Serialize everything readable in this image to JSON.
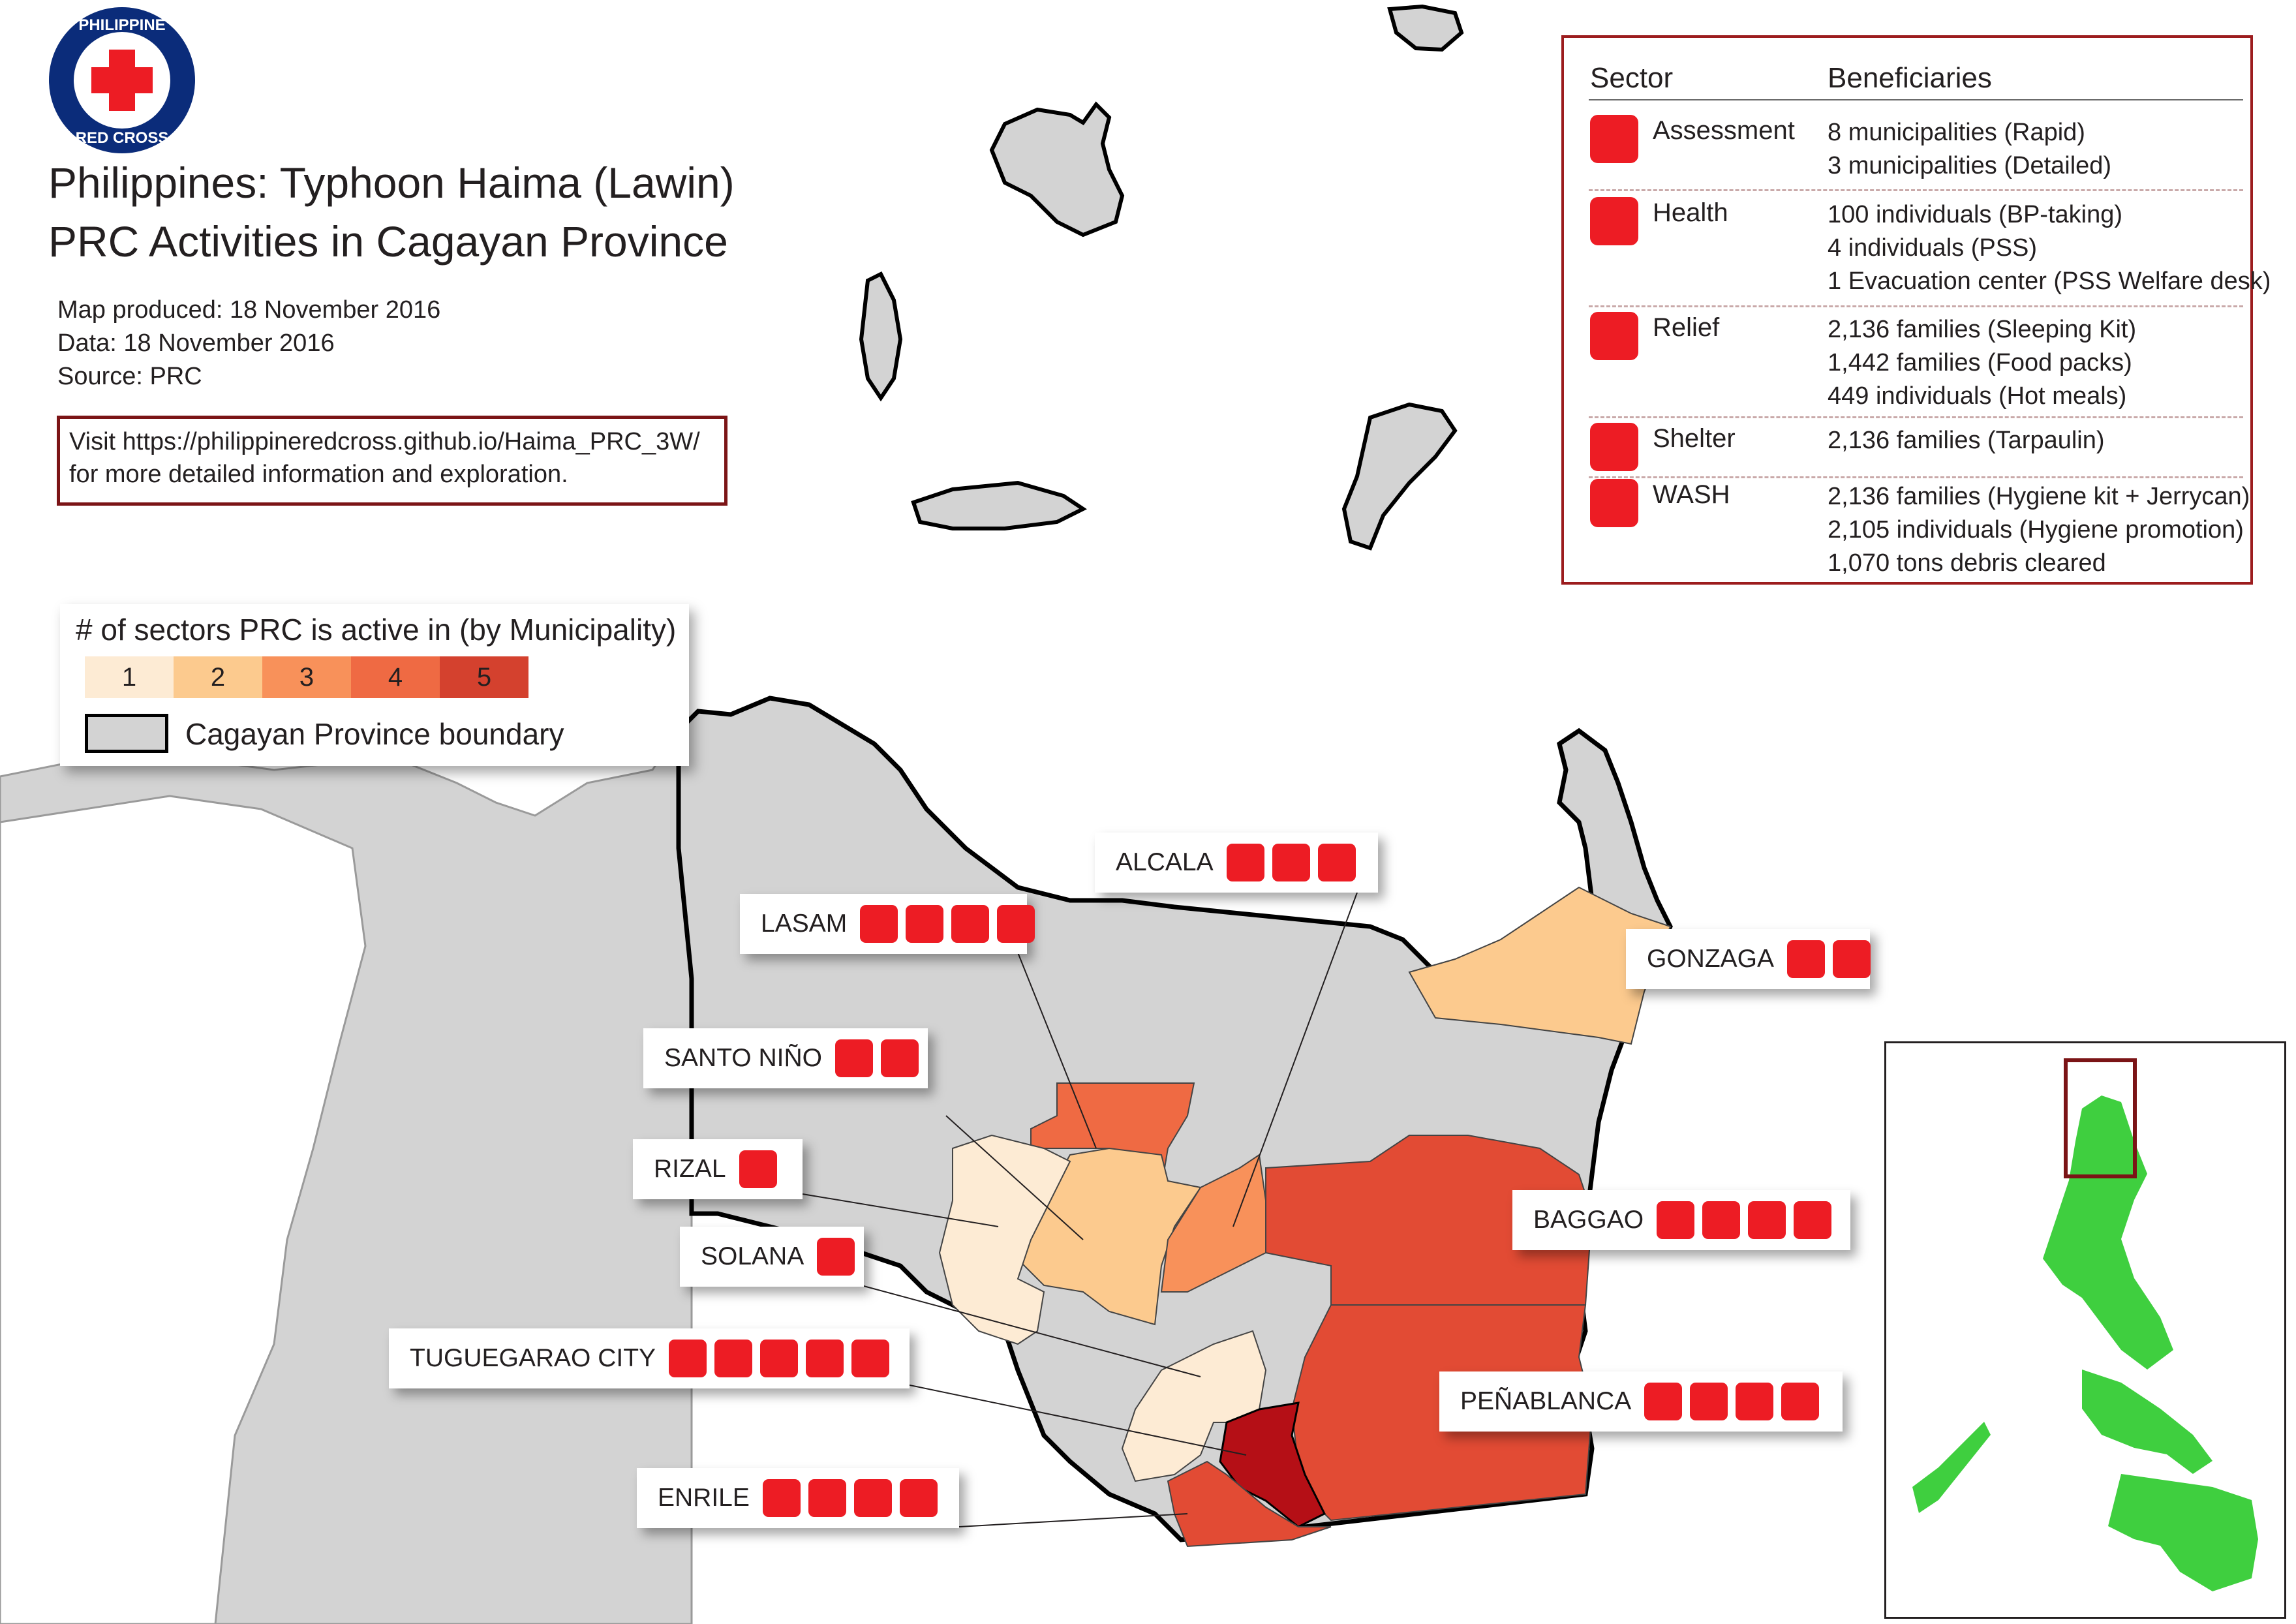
{
  "header": {
    "logo_text": "PHILIPPINE RED CROSS",
    "title_line1": "Philippines: Typhoon Haima (Lawin)",
    "title_line2": "PRC Activities in Cagayan Province",
    "map_produced": "Map produced: 18 November 2016",
    "data_date": "Data: 18 November 2016",
    "source": "Source: PRC",
    "visit_line1": "Visit https://philippineredcross.github.io/Haima_PRC_3W/",
    "visit_line2": "for more detailed information and exploration."
  },
  "sector_table": {
    "col_sector": "Sector",
    "col_beneficiaries": "Beneficiaries",
    "rows": [
      {
        "sector": "Assessment",
        "icon": "assessment-icon",
        "lines": [
          "8 municipalities (Rapid)",
          "3 municipalities (Detailed)"
        ]
      },
      {
        "sector": "Health",
        "icon": "health-icon",
        "lines": [
          "100 individuals (BP-taking)",
          "4 individuals (PSS)",
          "1 Evacuation center (PSS Welfare desk)"
        ]
      },
      {
        "sector": "Relief",
        "icon": "relief-icon",
        "lines": [
          "2,136 families (Sleeping Kit)",
          "1,442 families (Food packs)",
          "449 individuals (Hot meals)"
        ]
      },
      {
        "sector": "Shelter",
        "icon": "shelter-icon",
        "lines": [
          "2,136 families (Tarpaulin)"
        ]
      },
      {
        "sector": "WASH",
        "icon": "wash-icon",
        "lines": [
          "2,136 families (Hygiene kit + Jerrycan)",
          "2,105 individuals (Hygiene promotion)",
          "1,070 tons debris cleared"
        ]
      }
    ]
  },
  "legend": {
    "title": "# of sectors PRC is active in (by Municipality)",
    "classes": [
      {
        "label": "1",
        "color": "#fdebd4"
      },
      {
        "label": "2",
        "color": "#fcca8e"
      },
      {
        "label": "3",
        "color": "#f8915a"
      },
      {
        "label": "4",
        "color": "#ef6a43"
      },
      {
        "label": "5",
        "color": "#d4412e"
      }
    ],
    "boundary_label": "Cagayan Province boundary",
    "boundary_fill": "#d3d3d3"
  },
  "municipalities": [
    {
      "name": "ALCALA",
      "sectors": 3,
      "icons": [
        "relief-icon",
        "shelter-icon",
        "wash-icon"
      ]
    },
    {
      "name": "LASAM",
      "sectors": 4,
      "icons": [
        "assessment-icon",
        "relief-icon",
        "shelter-icon",
        "wash-icon"
      ]
    },
    {
      "name": "GONZAGA",
      "sectors": 2,
      "icons": [
        "health-icon",
        "relief-icon"
      ]
    },
    {
      "name": "SANTO NIÑO",
      "sectors": 2,
      "icons": [
        "assessment-icon",
        "relief-icon"
      ]
    },
    {
      "name": "RIZAL",
      "sectors": 1,
      "icons": [
        "assessment-icon"
      ]
    },
    {
      "name": "SOLANA",
      "sectors": 1,
      "icons": [
        "assessment-icon"
      ]
    },
    {
      "name": "BAGGAO",
      "sectors": 4,
      "icons": [
        "assessment-icon",
        "relief-icon",
        "shelter-icon",
        "wash-icon"
      ]
    },
    {
      "name": "TUGUEGARAO CITY",
      "sectors": 5,
      "icons": [
        "assessment-icon",
        "health-icon",
        "relief-icon",
        "shelter-icon",
        "wash-icon"
      ]
    },
    {
      "name": "PEÑABLANCA",
      "sectors": 4,
      "icons": [
        "assessment-icon",
        "relief-icon",
        "shelter-icon",
        "wash-icon"
      ]
    },
    {
      "name": "ENRILE",
      "sectors": 4,
      "icons": [
        "assessment-icon",
        "relief-icon",
        "shelter-icon",
        "wash-icon"
      ]
    }
  ],
  "colors": {
    "brand_red": "#ed1c24",
    "frame_red": "#9c1c1e",
    "land_gray": "#d3d3d3",
    "inset_green": "#3fcf3f",
    "tuguegarao": "#b50f16"
  }
}
